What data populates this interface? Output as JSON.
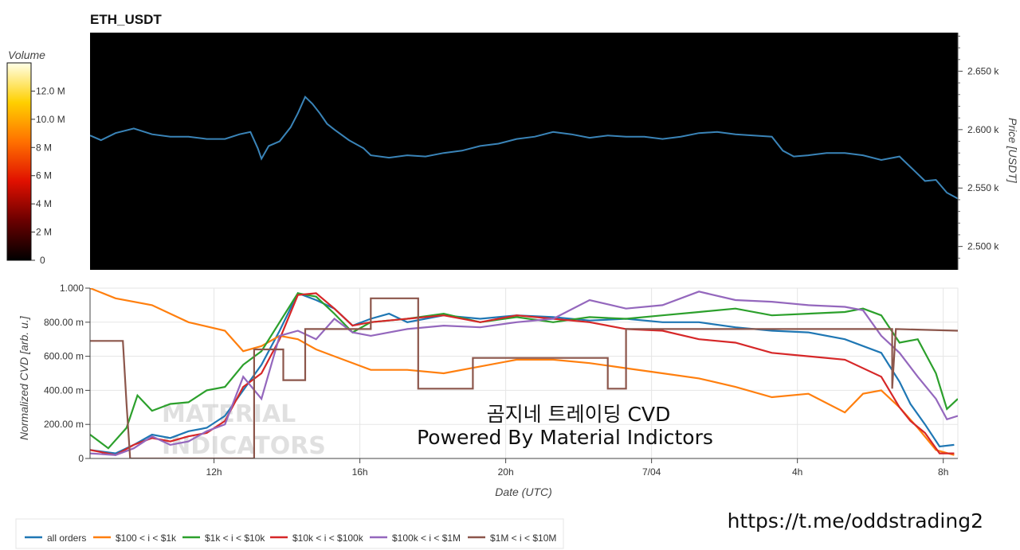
{
  "title": "ETH_USDT",
  "colorbar": {
    "title": "Volume",
    "ticks": [
      "0",
      "2 M",
      "4 M",
      "6 M",
      "8 M",
      "10.0 M",
      "12.0 M"
    ],
    "max": 14
  },
  "overlay": {
    "line1": "곰지네 트레이딩 CVD",
    "line2": "Powered By Material Indictors"
  },
  "watermark": {
    "line1": "MATERIAL",
    "line2": "INDICATORS"
  },
  "footer_link": "https://t.me/oddstrading2",
  "colors": {
    "all_orders": "#1f77b4",
    "b100_1k": "#ff7f0e",
    "b1k_10k": "#2ca02c",
    "b10k_100k": "#d62728",
    "b100k_1m": "#9467bd",
    "b1m_10m": "#8c564b",
    "price_line": "#3a84b8"
  },
  "chart_data": [
    {
      "type": "heatmap",
      "title": "ETH_USDT",
      "ylabel": "Price [USDT]",
      "colorbar_label": "Volume",
      "ylim": [
        2480,
        2683
      ],
      "yticks": [
        "2.500 k",
        "2.550 k",
        "2.600 k",
        "2.650 k"
      ],
      "ytick_values": [
        2500,
        2550,
        2600,
        2650
      ],
      "x_range_hours": [
        8.3,
        32.1
      ],
      "price_series_color": "#3a84b8",
      "price_series": [
        [
          8.3,
          2595
        ],
        [
          8.6,
          2591
        ],
        [
          9.0,
          2597
        ],
        [
          9.5,
          2601
        ],
        [
          10.0,
          2596
        ],
        [
          10.5,
          2594
        ],
        [
          11.0,
          2594
        ],
        [
          11.5,
          2592
        ],
        [
          12.0,
          2592
        ],
        [
          12.4,
          2596
        ],
        [
          12.7,
          2598
        ],
        [
          12.9,
          2584
        ],
        [
          13.0,
          2575
        ],
        [
          13.2,
          2586
        ],
        [
          13.5,
          2590
        ],
        [
          13.8,
          2602
        ],
        [
          14.0,
          2614
        ],
        [
          14.2,
          2628
        ],
        [
          14.4,
          2622
        ],
        [
          14.6,
          2614
        ],
        [
          14.8,
          2605
        ],
        [
          15.0,
          2600
        ],
        [
          15.4,
          2591
        ],
        [
          15.8,
          2584
        ],
        [
          16.0,
          2578
        ],
        [
          16.5,
          2576
        ],
        [
          17.0,
          2578
        ],
        [
          17.5,
          2577
        ],
        [
          18.0,
          2580
        ],
        [
          18.5,
          2582
        ],
        [
          19.0,
          2586
        ],
        [
          19.5,
          2588
        ],
        [
          20.0,
          2592
        ],
        [
          20.5,
          2594
        ],
        [
          21.0,
          2598
        ],
        [
          21.5,
          2596
        ],
        [
          22.0,
          2593
        ],
        [
          22.5,
          2595
        ],
        [
          23.0,
          2594
        ],
        [
          23.5,
          2594
        ],
        [
          24.0,
          2592
        ],
        [
          24.5,
          2594
        ],
        [
          25.0,
          2597
        ],
        [
          25.5,
          2598
        ],
        [
          26.0,
          2596
        ],
        [
          26.5,
          2595
        ],
        [
          27.0,
          2594
        ],
        [
          27.3,
          2582
        ],
        [
          27.6,
          2577
        ],
        [
          28.0,
          2578
        ],
        [
          28.5,
          2580
        ],
        [
          29.0,
          2580
        ],
        [
          29.5,
          2578
        ],
        [
          30.0,
          2574
        ],
        [
          30.5,
          2577
        ],
        [
          30.9,
          2565
        ],
        [
          31.2,
          2556
        ],
        [
          31.5,
          2557
        ],
        [
          31.8,
          2546
        ],
        [
          32.1,
          2541
        ]
      ]
    },
    {
      "type": "line",
      "xlabel": "Date (UTC)",
      "ylabel": "Normalized CVD [arb. u.]",
      "ylim": [
        0,
        1.0
      ],
      "yticks": [
        "0",
        "200.00 m",
        "400.00 m",
        "600.00 m",
        "800.00 m",
        "1.000"
      ],
      "ytick_values": [
        0,
        0.2,
        0.4,
        0.6,
        0.8,
        1.0
      ],
      "xlim": [
        8.3,
        32.1
      ],
      "xticks": [
        "12h",
        "16h",
        "20h",
        "7/04",
        "4h",
        "8h"
      ],
      "xtick_values": [
        11.7,
        15.7,
        19.7,
        23.7,
        27.7,
        31.7
      ],
      "series": [
        {
          "name": "all orders",
          "color": "#1f77b4",
          "points": [
            [
              8.3,
              0.05
            ],
            [
              9.0,
              0.03
            ],
            [
              9.5,
              0.08
            ],
            [
              10.0,
              0.14
            ],
            [
              10.5,
              0.12
            ],
            [
              11.0,
              0.16
            ],
            [
              11.5,
              0.18
            ],
            [
              12.0,
              0.25
            ],
            [
              12.5,
              0.4
            ],
            [
              13.0,
              0.55
            ],
            [
              13.5,
              0.75
            ],
            [
              14.0,
              0.97
            ],
            [
              14.5,
              0.93
            ],
            [
              15.0,
              0.88
            ],
            [
              15.5,
              0.78
            ],
            [
              16.0,
              0.82
            ],
            [
              16.5,
              0.85
            ],
            [
              17.0,
              0.8
            ],
            [
              18.0,
              0.84
            ],
            [
              19.0,
              0.82
            ],
            [
              20.0,
              0.84
            ],
            [
              21.0,
              0.83
            ],
            [
              22.0,
              0.81
            ],
            [
              23.0,
              0.82
            ],
            [
              24.0,
              0.8
            ],
            [
              25.0,
              0.8
            ],
            [
              26.0,
              0.77
            ],
            [
              27.0,
              0.75
            ],
            [
              28.0,
              0.74
            ],
            [
              29.0,
              0.7
            ],
            [
              30.0,
              0.62
            ],
            [
              30.5,
              0.45
            ],
            [
              30.8,
              0.32
            ],
            [
              31.2,
              0.2
            ],
            [
              31.6,
              0.07
            ],
            [
              32.0,
              0.08
            ]
          ]
        },
        {
          "name": "$100 < i < $1k",
          "color": "#ff7f0e",
          "points": [
            [
              8.3,
              1.0
            ],
            [
              9.0,
              0.94
            ],
            [
              10.0,
              0.9
            ],
            [
              10.5,
              0.85
            ],
            [
              11.0,
              0.8
            ],
            [
              12.0,
              0.75
            ],
            [
              12.5,
              0.63
            ],
            [
              13.0,
              0.66
            ],
            [
              13.5,
              0.72
            ],
            [
              14.0,
              0.7
            ],
            [
              14.5,
              0.64
            ],
            [
              15.0,
              0.6
            ],
            [
              16.0,
              0.52
            ],
            [
              17.0,
              0.52
            ],
            [
              18.0,
              0.5
            ],
            [
              19.0,
              0.54
            ],
            [
              20.0,
              0.58
            ],
            [
              21.0,
              0.58
            ],
            [
              22.0,
              0.56
            ],
            [
              23.0,
              0.53
            ],
            [
              24.0,
              0.5
            ],
            [
              25.0,
              0.47
            ],
            [
              26.0,
              0.42
            ],
            [
              27.0,
              0.36
            ],
            [
              28.0,
              0.38
            ],
            [
              29.0,
              0.27
            ],
            [
              29.5,
              0.38
            ],
            [
              30.0,
              0.4
            ],
            [
              30.5,
              0.3
            ],
            [
              31.0,
              0.18
            ],
            [
              31.5,
              0.05
            ],
            [
              32.0,
              0.02
            ]
          ]
        },
        {
          "name": "$1k < i < $10k",
          "color": "#2ca02c",
          "points": [
            [
              8.3,
              0.14
            ],
            [
              8.8,
              0.06
            ],
            [
              9.3,
              0.18
            ],
            [
              9.6,
              0.37
            ],
            [
              10.0,
              0.28
            ],
            [
              10.5,
              0.32
            ],
            [
              11.0,
              0.33
            ],
            [
              11.5,
              0.4
            ],
            [
              12.0,
              0.42
            ],
            [
              12.5,
              0.55
            ],
            [
              13.0,
              0.63
            ],
            [
              13.5,
              0.8
            ],
            [
              14.0,
              0.97
            ],
            [
              14.5,
              0.95
            ],
            [
              15.0,
              0.85
            ],
            [
              15.5,
              0.74
            ],
            [
              16.0,
              0.8
            ],
            [
              17.0,
              0.82
            ],
            [
              18.0,
              0.85
            ],
            [
              19.0,
              0.8
            ],
            [
              20.0,
              0.83
            ],
            [
              21.0,
              0.8
            ],
            [
              22.0,
              0.83
            ],
            [
              23.0,
              0.82
            ],
            [
              24.0,
              0.84
            ],
            [
              25.0,
              0.86
            ],
            [
              26.0,
              0.88
            ],
            [
              27.0,
              0.84
            ],
            [
              28.0,
              0.85
            ],
            [
              29.0,
              0.86
            ],
            [
              29.5,
              0.88
            ],
            [
              30.0,
              0.84
            ],
            [
              30.5,
              0.68
            ],
            [
              31.0,
              0.7
            ],
            [
              31.5,
              0.5
            ],
            [
              31.8,
              0.29
            ],
            [
              32.1,
              0.35
            ]
          ]
        },
        {
          "name": "$10k < i < $100k",
          "color": "#d62728",
          "points": [
            [
              8.3,
              0.05
            ],
            [
              9.0,
              0.02
            ],
            [
              9.5,
              0.08
            ],
            [
              10.0,
              0.12
            ],
            [
              10.5,
              0.1
            ],
            [
              11.0,
              0.13
            ],
            [
              11.5,
              0.15
            ],
            [
              12.0,
              0.22
            ],
            [
              12.5,
              0.42
            ],
            [
              13.0,
              0.5
            ],
            [
              13.5,
              0.7
            ],
            [
              14.0,
              0.96
            ],
            [
              14.5,
              0.97
            ],
            [
              15.0,
              0.88
            ],
            [
              15.5,
              0.78
            ],
            [
              16.0,
              0.8
            ],
            [
              17.0,
              0.82
            ],
            [
              18.0,
              0.84
            ],
            [
              19.0,
              0.8
            ],
            [
              20.0,
              0.84
            ],
            [
              21.0,
              0.82
            ],
            [
              22.0,
              0.8
            ],
            [
              23.0,
              0.76
            ],
            [
              24.0,
              0.75
            ],
            [
              25.0,
              0.7
            ],
            [
              26.0,
              0.68
            ],
            [
              27.0,
              0.62
            ],
            [
              28.0,
              0.6
            ],
            [
              29.0,
              0.58
            ],
            [
              30.0,
              0.48
            ],
            [
              30.5,
              0.3
            ],
            [
              30.8,
              0.22
            ],
            [
              31.2,
              0.15
            ],
            [
              31.6,
              0.03
            ],
            [
              32.0,
              0.03
            ]
          ]
        },
        {
          "name": "$100k < i < $1M",
          "color": "#9467bd",
          "points": [
            [
              8.3,
              0.03
            ],
            [
              9.0,
              0.02
            ],
            [
              9.5,
              0.06
            ],
            [
              10.0,
              0.13
            ],
            [
              10.5,
              0.08
            ],
            [
              11.0,
              0.1
            ],
            [
              11.5,
              0.16
            ],
            [
              12.0,
              0.2
            ],
            [
              12.5,
              0.48
            ],
            [
              13.0,
              0.35
            ],
            [
              13.5,
              0.72
            ],
            [
              14.0,
              0.75
            ],
            [
              14.5,
              0.7
            ],
            [
              15.0,
              0.82
            ],
            [
              15.5,
              0.74
            ],
            [
              16.0,
              0.72
            ],
            [
              17.0,
              0.76
            ],
            [
              18.0,
              0.78
            ],
            [
              19.0,
              0.77
            ],
            [
              20.0,
              0.8
            ],
            [
              21.0,
              0.82
            ],
            [
              22.0,
              0.93
            ],
            [
              23.0,
              0.88
            ],
            [
              24.0,
              0.9
            ],
            [
              25.0,
              0.98
            ],
            [
              26.0,
              0.93
            ],
            [
              27.0,
              0.92
            ],
            [
              28.0,
              0.9
            ],
            [
              29.0,
              0.89
            ],
            [
              29.5,
              0.87
            ],
            [
              30.0,
              0.72
            ],
            [
              30.5,
              0.62
            ],
            [
              31.0,
              0.48
            ],
            [
              31.5,
              0.35
            ],
            [
              31.8,
              0.23
            ],
            [
              32.1,
              0.25
            ]
          ]
        },
        {
          "name": "$1M < i < $10M",
          "color": "#8c564b",
          "points": [
            [
              8.3,
              0.69
            ],
            [
              9.2,
              0.69
            ],
            [
              9.3,
              0.32
            ],
            [
              9.4,
              0.0
            ],
            [
              12.8,
              0.0
            ],
            [
              12.8,
              0.64
            ],
            [
              13.6,
              0.64
            ],
            [
              13.6,
              0.46
            ],
            [
              14.2,
              0.46
            ],
            [
              14.2,
              0.76
            ],
            [
              16.0,
              0.76
            ],
            [
              16.0,
              0.94
            ],
            [
              17.3,
              0.94
            ],
            [
              17.3,
              0.41
            ],
            [
              18.8,
              0.41
            ],
            [
              18.8,
              0.59
            ],
            [
              22.5,
              0.59
            ],
            [
              22.5,
              0.41
            ],
            [
              23.0,
              0.41
            ],
            [
              23.0,
              0.76
            ],
            [
              30.3,
              0.76
            ],
            [
              30.3,
              0.41
            ],
            [
              30.4,
              0.76
            ],
            [
              32.1,
              0.75
            ]
          ]
        }
      ]
    }
  ],
  "legend": [
    {
      "label": "all orders",
      "color": "#1f77b4"
    },
    {
      "label": "$100 < i < $1k",
      "color": "#ff7f0e"
    },
    {
      "label": "$1k < i < $10k",
      "color": "#2ca02c"
    },
    {
      "label": "$10k < i < $100k",
      "color": "#d62728"
    },
    {
      "label": "$100k < i < $1M",
      "color": "#9467bd"
    },
    {
      "label": "$1M < i < $10M",
      "color": "#8c564b"
    }
  ]
}
